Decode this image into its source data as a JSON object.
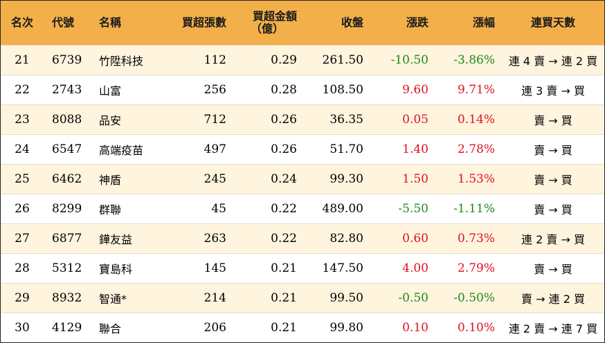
{
  "colors": {
    "header_bg": "#f3b04a",
    "odd_row_bg": "#fff4de",
    "up": "#e0101f",
    "down": "#1a8a1a"
  },
  "headers": {
    "rank": "名次",
    "code": "代號",
    "name": "名稱",
    "net_lots": "買超張數",
    "net_amount_line1": "買超金額",
    "net_amount_line2": "（億）",
    "close": "收盤",
    "change": "漲跌",
    "pct": "漲幅",
    "streak": "連買天數"
  },
  "rows": [
    {
      "rank": "21",
      "code": "6739",
      "name": "竹陞科技",
      "net_lots": "112",
      "net_amount": "0.29",
      "close": "261.50",
      "change": "-10.50",
      "pct": "-3.86%",
      "direction": "down",
      "streak": "連 4 賣 → 連 2 買"
    },
    {
      "rank": "22",
      "code": "2743",
      "name": "山富",
      "net_lots": "256",
      "net_amount": "0.28",
      "close": "108.50",
      "change": "9.60",
      "pct": "9.71%",
      "direction": "up",
      "streak": "連 3 賣 → 買"
    },
    {
      "rank": "23",
      "code": "8088",
      "name": "品安",
      "net_lots": "712",
      "net_amount": "0.26",
      "close": "36.35",
      "change": "0.05",
      "pct": "0.14%",
      "direction": "up",
      "streak": "賣 → 買"
    },
    {
      "rank": "24",
      "code": "6547",
      "name": "高端疫苗",
      "net_lots": "497",
      "net_amount": "0.26",
      "close": "51.70",
      "change": "1.40",
      "pct": "2.78%",
      "direction": "up",
      "streak": "賣 → 買"
    },
    {
      "rank": "25",
      "code": "6462",
      "name": "神盾",
      "net_lots": "245",
      "net_amount": "0.24",
      "close": "99.30",
      "change": "1.50",
      "pct": "1.53%",
      "direction": "up",
      "streak": "賣 → 買"
    },
    {
      "rank": "26",
      "code": "8299",
      "name": "群聯",
      "net_lots": "45",
      "net_amount": "0.22",
      "close": "489.00",
      "change": "-5.50",
      "pct": "-1.11%",
      "direction": "down",
      "streak": "賣 → 買"
    },
    {
      "rank": "27",
      "code": "6877",
      "name": "鏵友益",
      "net_lots": "263",
      "net_amount": "0.22",
      "close": "82.80",
      "change": "0.60",
      "pct": "0.73%",
      "direction": "up",
      "streak": "連 2 賣 → 買"
    },
    {
      "rank": "28",
      "code": "5312",
      "name": "寶島科",
      "net_lots": "145",
      "net_amount": "0.21",
      "close": "147.50",
      "change": "4.00",
      "pct": "2.79%",
      "direction": "up",
      "streak": "賣 → 買"
    },
    {
      "rank": "29",
      "code": "8932",
      "name": "智通*",
      "net_lots": "214",
      "net_amount": "0.21",
      "close": "99.50",
      "change": "-0.50",
      "pct": "-0.50%",
      "direction": "down",
      "streak": "賣 → 連 2 買"
    },
    {
      "rank": "30",
      "code": "4129",
      "name": "聯合",
      "net_lots": "206",
      "net_amount": "0.21",
      "close": "99.80",
      "change": "0.10",
      "pct": "0.10%",
      "direction": "up",
      "streak": "連 2 賣 → 連 7 買"
    }
  ]
}
